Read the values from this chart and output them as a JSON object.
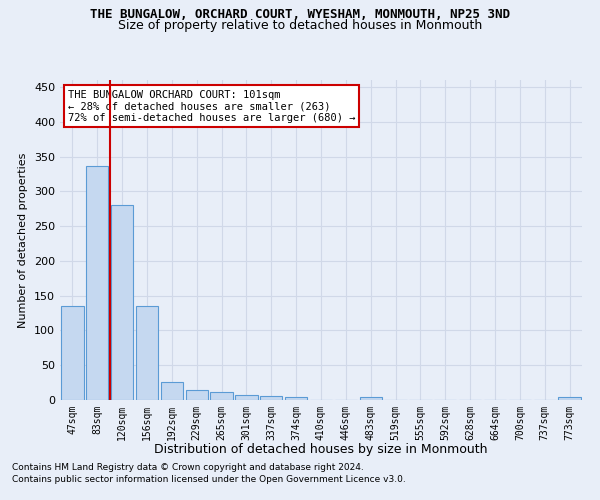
{
  "title1": "THE BUNGALOW, ORCHARD COURT, WYESHAM, MONMOUTH, NP25 3ND",
  "title2": "Size of property relative to detached houses in Monmouth",
  "xlabel": "Distribution of detached houses by size in Monmouth",
  "ylabel": "Number of detached properties",
  "footer1": "Contains HM Land Registry data © Crown copyright and database right 2024.",
  "footer2": "Contains public sector information licensed under the Open Government Licence v3.0.",
  "bar_labels": [
    "47sqm",
    "83sqm",
    "120sqm",
    "156sqm",
    "192sqm",
    "229sqm",
    "265sqm",
    "301sqm",
    "337sqm",
    "374sqm",
    "410sqm",
    "446sqm",
    "483sqm",
    "519sqm",
    "555sqm",
    "592sqm",
    "628sqm",
    "664sqm",
    "700sqm",
    "737sqm",
    "773sqm"
  ],
  "bar_values": [
    135,
    336,
    281,
    135,
    26,
    15,
    11,
    7,
    6,
    5,
    0,
    0,
    4,
    0,
    0,
    0,
    0,
    0,
    0,
    0,
    4
  ],
  "bar_color": "#c5d8f0",
  "bar_edge_color": "#5b9bd5",
  "grid_color": "#d0d8e8",
  "background_color": "#e8eef8",
  "vline_x": 1.5,
  "vline_color": "#cc0000",
  "annotation_text": "THE BUNGALOW ORCHARD COURT: 101sqm\n← 28% of detached houses are smaller (263)\n72% of semi-detached houses are larger (680) →",
  "annotation_box_color": "#ffffff",
  "annotation_box_edge": "#cc0000",
  "ylim": [
    0,
    460
  ],
  "yticks": [
    0,
    50,
    100,
    150,
    200,
    250,
    300,
    350,
    400,
    450
  ]
}
